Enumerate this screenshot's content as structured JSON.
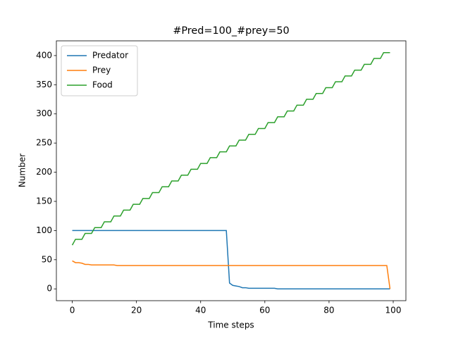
{
  "chart_data": {
    "type": "line",
    "title": "#Pred=100_#prey=50",
    "xlabel": "Time steps",
    "ylabel": "Number",
    "x": [
      0,
      1,
      2,
      3,
      4,
      5,
      6,
      7,
      8,
      9,
      10,
      11,
      12,
      13,
      14,
      15,
      16,
      17,
      18,
      19,
      20,
      21,
      22,
      23,
      24,
      25,
      26,
      27,
      28,
      29,
      30,
      31,
      32,
      33,
      34,
      35,
      36,
      37,
      38,
      39,
      40,
      41,
      42,
      43,
      44,
      45,
      46,
      47,
      48,
      49,
      50,
      51,
      52,
      53,
      54,
      55,
      56,
      57,
      58,
      59,
      60,
      61,
      62,
      63,
      64,
      65,
      66,
      67,
      68,
      69,
      70,
      71,
      72,
      73,
      74,
      75,
      76,
      77,
      78,
      79,
      80,
      81,
      82,
      83,
      84,
      85,
      86,
      87,
      88,
      89,
      90,
      91,
      92,
      93,
      94,
      95,
      96,
      97,
      98,
      99
    ],
    "series": [
      {
        "name": "Predator",
        "color": "#1f77b4",
        "values": [
          100,
          100,
          100,
          100,
          100,
          100,
          100,
          100,
          100,
          100,
          100,
          100,
          100,
          100,
          100,
          100,
          100,
          100,
          100,
          100,
          100,
          100,
          100,
          100,
          100,
          100,
          100,
          100,
          100,
          100,
          100,
          100,
          100,
          100,
          100,
          100,
          100,
          100,
          100,
          100,
          100,
          100,
          100,
          100,
          100,
          100,
          100,
          100,
          100,
          10,
          6,
          5,
          4,
          2,
          2,
          1,
          1,
          1,
          1,
          1,
          1,
          1,
          1,
          1,
          0,
          0,
          0,
          0,
          0,
          0,
          0,
          0,
          0,
          0,
          0,
          0,
          0,
          0,
          0,
          0,
          0,
          0,
          0,
          0,
          0,
          0,
          0,
          0,
          0,
          0,
          0,
          0,
          0,
          0,
          0,
          0,
          0,
          0,
          0,
          0
        ]
      },
      {
        "name": "Prey",
        "color": "#ff7f0e",
        "values": [
          48,
          45,
          45,
          44,
          42,
          42,
          41,
          41,
          41,
          41,
          41,
          41,
          41,
          41,
          40,
          40,
          40,
          40,
          40,
          40,
          40,
          40,
          40,
          40,
          40,
          40,
          40,
          40,
          40,
          40,
          40,
          40,
          40,
          40,
          40,
          40,
          40,
          40,
          40,
          40,
          40,
          40,
          40,
          40,
          40,
          40,
          40,
          40,
          40,
          40,
          40,
          40,
          40,
          40,
          40,
          40,
          40,
          40,
          40,
          40,
          40,
          40,
          40,
          40,
          40,
          40,
          40,
          40,
          40,
          40,
          40,
          40,
          40,
          40,
          40,
          40,
          40,
          40,
          40,
          40,
          40,
          40,
          40,
          40,
          40,
          40,
          40,
          40,
          40,
          40,
          40,
          40,
          40,
          40,
          40,
          40,
          40,
          40,
          40,
          0
        ]
      },
      {
        "name": "Food",
        "color": "#2ca02c",
        "values": [
          75,
          85,
          85,
          85,
          95,
          95,
          95,
          105,
          105,
          105,
          115,
          115,
          115,
          125,
          125,
          125,
          135,
          135,
          135,
          145,
          145,
          145,
          155,
          155,
          155,
          165,
          165,
          165,
          175,
          175,
          175,
          185,
          185,
          185,
          195,
          195,
          195,
          205,
          205,
          205,
          215,
          215,
          215,
          225,
          225,
          225,
          235,
          235,
          235,
          245,
          245,
          245,
          255,
          255,
          255,
          265,
          265,
          265,
          275,
          275,
          275,
          285,
          285,
          285,
          295,
          295,
          295,
          305,
          305,
          305,
          315,
          315,
          315,
          325,
          325,
          325,
          335,
          335,
          335,
          345,
          345,
          345,
          355,
          355,
          355,
          365,
          365,
          365,
          375,
          375,
          375,
          385,
          385,
          385,
          395,
          395,
          395,
          405,
          405,
          405
        ]
      }
    ],
    "xlim": [
      -4.95,
      103.95
    ],
    "xticks": [
      0,
      20,
      40,
      60,
      80,
      100
    ],
    "ylim": [
      -20.25,
      425.25
    ],
    "yticks": [
      0,
      50,
      100,
      150,
      200,
      250,
      300,
      350,
      400
    ],
    "legend": "upper left"
  }
}
